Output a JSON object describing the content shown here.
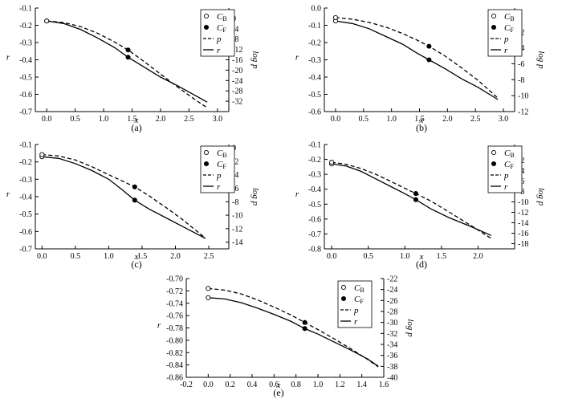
{
  "chart_data": [
    {
      "panel_label": "(a)",
      "type": "line",
      "xlabel": "x",
      "ylabel_left": "r",
      "ylabel_right": "log p",
      "xlim": [
        -0.2,
        3.2
      ],
      "ylim_left": [
        -0.7,
        -0.1
      ],
      "ylim_right": [
        -36,
        4
      ],
      "xticks": [
        "0.0",
        "0.5",
        "1.0",
        "1.5",
        "2.0",
        "2.5",
        "3.0"
      ],
      "yticks_left": [
        "-0.1",
        "-0.2",
        "-0.3",
        "-0.4",
        "-0.5",
        "-0.6",
        "-0.7"
      ],
      "yticks_right": [
        "0",
        "-4",
        "-8",
        "-12",
        "-16",
        "-20",
        "-24",
        "-28",
        "-32"
      ],
      "legend": [
        "C_B",
        "C_F",
        "p",
        "r"
      ],
      "series": [
        {
          "name": "r",
          "axis": "left",
          "dash": "solid",
          "x": [
            0,
            0.3,
            0.6,
            0.9,
            1.2,
            1.43,
            1.7,
            2.0,
            2.3,
            2.6,
            2.82
          ],
          "y": [
            -0.175,
            -0.19,
            -0.225,
            -0.275,
            -0.33,
            -0.385,
            -0.44,
            -0.5,
            -0.55,
            -0.605,
            -0.645
          ]
        },
        {
          "name": "p",
          "axis": "right",
          "dash": "dashed",
          "x": [
            0,
            0.3,
            0.6,
            0.9,
            1.2,
            1.43,
            1.7,
            2.0,
            2.3,
            2.6,
            2.82
          ],
          "y": [
            -1,
            -1.6,
            -3.2,
            -5.8,
            -9.2,
            -12.2,
            -16.5,
            -21.5,
            -26.5,
            -31.3,
            -34.5
          ]
        }
      ],
      "points": [
        {
          "name": "C_B",
          "style": "open",
          "x": 0,
          "r": -0.175,
          "log_p": -1
        },
        {
          "name": "C_F",
          "style": "filled",
          "x": 1.43,
          "r": -0.385,
          "log_p": -12.2
        }
      ]
    },
    {
      "panel_label": "(b)",
      "type": "line",
      "xlabel": "x",
      "ylabel_left": "r",
      "ylabel_right": "log p",
      "xlim": [
        -0.2,
        3.2
      ],
      "ylim_left": [
        -0.6,
        0.0
      ],
      "ylim_right": [
        -12,
        1
      ],
      "xticks": [
        "0.0",
        "0.5",
        "1.0",
        "1.5",
        "2.0",
        "2.5",
        "3.0"
      ],
      "yticks_left": [
        "0.0",
        "-0.1",
        "-0.2",
        "-0.3",
        "-0.4",
        "-0.5",
        "-0.6"
      ],
      "yticks_right": [
        "0",
        "-2",
        "-4",
        "-6",
        "-8",
        "-10",
        "-12"
      ],
      "legend": [
        "C_B",
        "C_F",
        "p",
        "r"
      ],
      "series": [
        {
          "name": "r",
          "axis": "left",
          "dash": "solid",
          "x": [
            0,
            0.3,
            0.6,
            0.9,
            1.2,
            1.45,
            1.67,
            1.95,
            2.25,
            2.55,
            2.9
          ],
          "y": [
            -0.075,
            -0.09,
            -0.12,
            -0.165,
            -0.21,
            -0.26,
            -0.3,
            -0.35,
            -0.41,
            -0.46,
            -0.53
          ]
        },
        {
          "name": "p",
          "axis": "right",
          "dash": "dashed",
          "x": [
            0,
            0.3,
            0.6,
            0.9,
            1.2,
            1.45,
            1.67,
            1.95,
            2.25,
            2.55,
            2.9
          ],
          "y": [
            -0.2,
            -0.4,
            -0.8,
            -1.4,
            -2.2,
            -3.0,
            -3.8,
            -5.0,
            -6.5,
            -8.1,
            -10.3
          ]
        }
      ],
      "points": [
        {
          "name": "C_B",
          "style": "open",
          "x": 0,
          "r": -0.075,
          "log_p": -0.2
        },
        {
          "name": "C_F",
          "style": "filled",
          "x": 1.67,
          "r": -0.3,
          "log_p": -3.8
        }
      ]
    },
    {
      "panel_label": "(c)",
      "type": "line",
      "xlabel": "x",
      "ylabel_left": "r",
      "ylabel_right": "log p",
      "xlim": [
        -0.1,
        2.8
      ],
      "ylim_left": [
        -0.7,
        -0.1
      ],
      "ylim_right": [
        -15,
        0.5
      ],
      "xticks": [
        "0.0",
        "0.5",
        "1.0",
        "1.5",
        "2.0",
        "2.5"
      ],
      "yticks_left": [
        "-0.1",
        "-0.2",
        "-0.3",
        "-0.4",
        "-0.5",
        "-0.6",
        "-0.7"
      ],
      "yticks_right": [
        "0",
        "-2",
        "-4",
        "-6",
        "-8",
        "-10",
        "-12",
        "-14"
      ],
      "legend": [
        "C_B",
        "C_F",
        "p",
        "r"
      ],
      "series": [
        {
          "name": "r",
          "axis": "left",
          "dash": "solid",
          "x": [
            0,
            0.25,
            0.5,
            0.75,
            1.0,
            1.2,
            1.39,
            1.6,
            1.85,
            2.1,
            2.45
          ],
          "y": [
            -0.17,
            -0.18,
            -0.21,
            -0.25,
            -0.3,
            -0.36,
            -0.42,
            -0.47,
            -0.52,
            -0.57,
            -0.64
          ]
        },
        {
          "name": "p",
          "axis": "right",
          "dash": "dashed",
          "x": [
            0,
            0.25,
            0.5,
            0.75,
            1.0,
            1.2,
            1.39,
            1.6,
            1.85,
            2.1,
            2.45
          ],
          "y": [
            -1.0,
            -1.2,
            -1.8,
            -2.8,
            -4.0,
            -4.9,
            -5.8,
            -7.1,
            -8.8,
            -10.6,
            -13.4
          ]
        }
      ],
      "points": [
        {
          "name": "C_B",
          "style": "open",
          "x": 0,
          "r": -0.17,
          "log_p": -1.0
        },
        {
          "name": "C_F",
          "style": "filled",
          "x": 1.39,
          "r": -0.42,
          "log_p": -5.8
        }
      ]
    },
    {
      "panel_label": "(d)",
      "type": "line",
      "xlabel": "x",
      "ylabel_left": "r",
      "ylabel_right": "log p",
      "xlim": [
        -0.1,
        2.5
      ],
      "ylim_left": [
        -0.8,
        -0.1
      ],
      "ylim_right": [
        -19,
        1
      ],
      "xticks": [
        "0.0",
        "0.5",
        "1.0",
        "1.5",
        "2.0"
      ],
      "yticks_left": [
        "-0.1",
        "-0.2",
        "-0.3",
        "-0.4",
        "-0.5",
        "-0.6",
        "-0.7",
        "-0.8"
      ],
      "yticks_right": [
        "0",
        "-2",
        "-4",
        "-6",
        "-8",
        "-10",
        "-12",
        "-14",
        "-16",
        "-18"
      ],
      "legend": [
        "C_B",
        "C_F",
        "p",
        "r"
      ],
      "series": [
        {
          "name": "r",
          "axis": "left",
          "dash": "solid",
          "x": [
            0,
            0.2,
            0.4,
            0.6,
            0.8,
            1.0,
            1.15,
            1.35,
            1.6,
            1.9,
            2.18
          ],
          "y": [
            -0.23,
            -0.245,
            -0.28,
            -0.33,
            -0.38,
            -0.43,
            -0.47,
            -0.53,
            -0.59,
            -0.65,
            -0.71
          ]
        },
        {
          "name": "p",
          "axis": "right",
          "dash": "dashed",
          "x": [
            0,
            0.2,
            0.4,
            0.6,
            0.8,
            1.0,
            1.15,
            1.35,
            1.6,
            1.9,
            2.18
          ],
          "y": [
            -2.4,
            -2.8,
            -3.6,
            -4.7,
            -6.0,
            -7.4,
            -8.4,
            -9.8,
            -11.9,
            -14.5,
            -17.0
          ]
        }
      ],
      "points": [
        {
          "name": "C_B",
          "style": "open",
          "x": 0,
          "r": -0.23,
          "log_p": -2.4
        },
        {
          "name": "C_F",
          "style": "filled",
          "x": 1.15,
          "r": -0.47,
          "log_p": -8.4
        }
      ]
    },
    {
      "panel_label": "(e)",
      "type": "line",
      "xlabel": "x",
      "ylabel_left": "r",
      "ylabel_right": "log p",
      "xlim": [
        -0.2,
        1.6
      ],
      "ylim_left": [
        -0.86,
        -0.7
      ],
      "ylim_right": [
        -40,
        -22
      ],
      "xticks": [
        "-0.2",
        "0.0",
        "0.2",
        "0.4",
        "0.6",
        "0.8",
        "1.0",
        "1.2",
        "1.4",
        "1.6"
      ],
      "yticks_left": [
        "-0.70",
        "-0.72",
        "-0.74",
        "-0.76",
        "-0.78",
        "-0.80",
        "-0.82",
        "-0.84",
        "-0.86"
      ],
      "yticks_right": [
        "-22",
        "-24",
        "-26",
        "-28",
        "-30",
        "-32",
        "-34",
        "-36",
        "-38",
        "-40"
      ],
      "legend": [
        "C_B",
        "C_F",
        "p",
        "r"
      ],
      "series": [
        {
          "name": "r",
          "axis": "left",
          "dash": "solid",
          "x": [
            0,
            0.15,
            0.3,
            0.45,
            0.6,
            0.75,
            0.88,
            1.0,
            1.15,
            1.3,
            1.45,
            1.55
          ],
          "y": [
            -0.731,
            -0.733,
            -0.739,
            -0.748,
            -0.758,
            -0.769,
            -0.781,
            -0.79,
            -0.803,
            -0.816,
            -0.83,
            -0.842
          ]
        },
        {
          "name": "p",
          "axis": "right",
          "dash": "dashed",
          "x": [
            0,
            0.15,
            0.3,
            0.45,
            0.6,
            0.75,
            0.88,
            1.0,
            1.15,
            1.3,
            1.45,
            1.55
          ],
          "y": [
            -23.8,
            -24.1,
            -24.8,
            -25.9,
            -27.2,
            -28.6,
            -30.0,
            -31.3,
            -33.0,
            -34.8,
            -36.7,
            -38.1
          ]
        }
      ],
      "points": [
        {
          "name": "C_B",
          "style": "open",
          "x": 0,
          "r": -0.731,
          "log_p": -23.8
        },
        {
          "name": "C_F",
          "style": "filled",
          "x": 0.88,
          "r": -0.781,
          "log_p": -30.0
        }
      ]
    }
  ]
}
